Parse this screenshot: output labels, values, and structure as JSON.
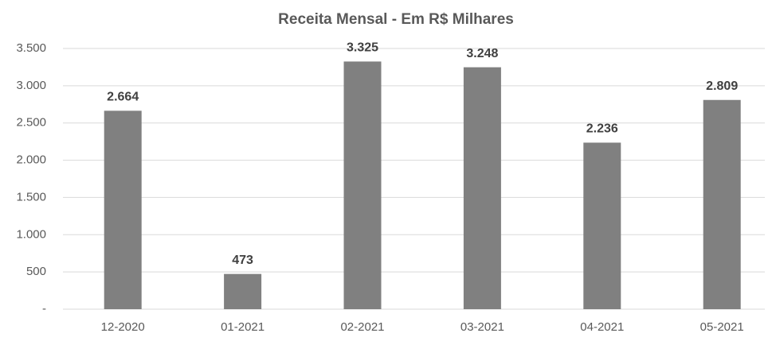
{
  "chart_data": {
    "type": "bar",
    "title": "Receita Mensal -  Em R$ Milhares",
    "categories": [
      "12-2020",
      "01-2021",
      "02-2021",
      "03-2021",
      "04-2021",
      "05-2021"
    ],
    "values": [
      2664,
      473,
      3325,
      3248,
      2236,
      2809
    ],
    "value_labels": [
      "2.664",
      "473",
      "3.325",
      "3.248",
      "2.236",
      "2.809"
    ],
    "color": "#808080",
    "ylim": [
      0,
      3500
    ],
    "yticks": [
      {
        "value": 0,
        "label": "-"
      },
      500,
      {
        "value": 1000,
        "label": "1.000"
      },
      {
        "value": 1500,
        "label": "1.500"
      },
      {
        "value": 2000,
        "label": "2.000"
      },
      {
        "value": 2500,
        "label": "2.500"
      },
      {
        "value": 3000,
        "label": "3.000"
      },
      {
        "value": 3500,
        "label": "3.500"
      }
    ],
    "grid": true
  }
}
